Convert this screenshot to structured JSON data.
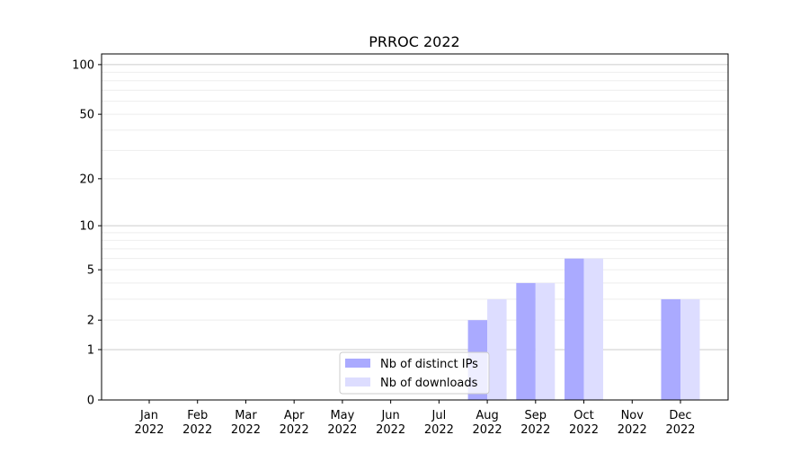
{
  "chart_data": {
    "type": "bar",
    "title": "PRROC 2022",
    "xlabel": "",
    "ylabel": "",
    "yscale": "log(1+y)",
    "ylim": [
      0,
      116
    ],
    "yticks": [
      0,
      1,
      2,
      5,
      10,
      20,
      50,
      100
    ],
    "ytick_labels": [
      "0",
      "1",
      "2",
      "5",
      "10",
      "20",
      "50",
      "100"
    ],
    "grid": true,
    "legend_position": "lower-center",
    "categories": [
      [
        "Jan",
        "2022"
      ],
      [
        "Feb",
        "2022"
      ],
      [
        "Mar",
        "2022"
      ],
      [
        "Apr",
        "2022"
      ],
      [
        "May",
        "2022"
      ],
      [
        "Jun",
        "2022"
      ],
      [
        "Jul",
        "2022"
      ],
      [
        "Aug",
        "2022"
      ],
      [
        "Sep",
        "2022"
      ],
      [
        "Oct",
        "2022"
      ],
      [
        "Nov",
        "2022"
      ],
      [
        "Dec",
        "2022"
      ]
    ],
    "series": [
      {
        "name": "Nb of distinct IPs",
        "color": "#aaaaff",
        "values": [
          0,
          0,
          0,
          0,
          0,
          0,
          0,
          2,
          4,
          6,
          0,
          3
        ]
      },
      {
        "name": "Nb of downloads",
        "color": "#ddddff",
        "values": [
          0,
          0,
          0,
          0,
          0,
          0,
          0,
          3,
          4,
          6,
          0,
          3
        ]
      }
    ]
  }
}
